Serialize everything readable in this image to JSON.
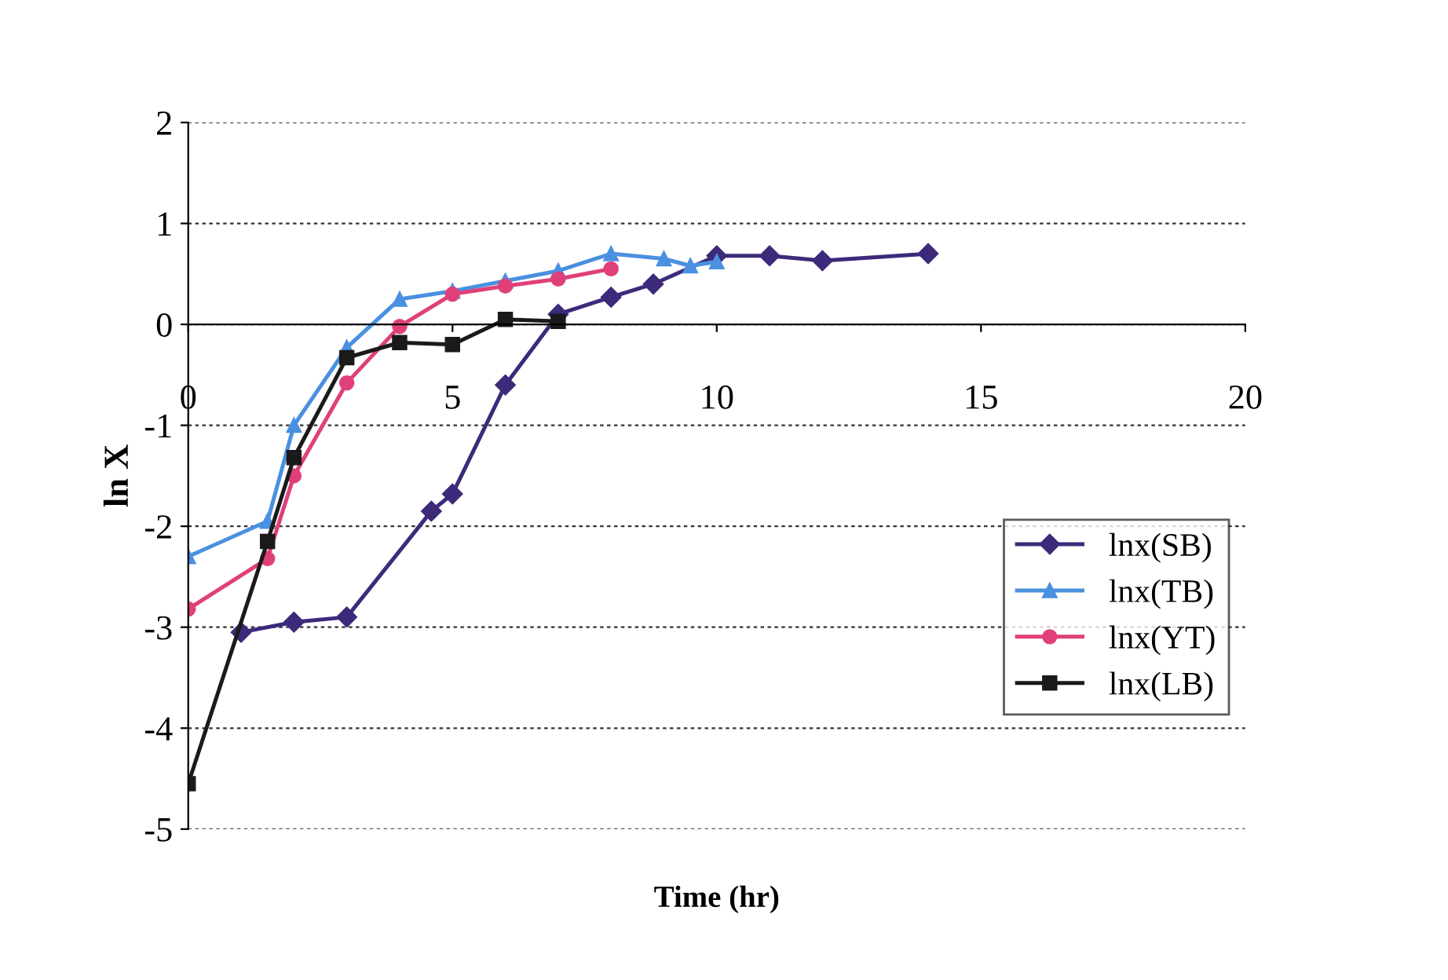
{
  "chart_data": {
    "type": "line",
    "xlabel": "Time (hr)",
    "ylabel": "ln X",
    "xlim": [
      0,
      20
    ],
    "xticks": [
      0,
      5,
      10,
      15,
      20
    ],
    "ylim": [
      -5,
      2
    ],
    "yticks": [
      -5,
      -4,
      -3,
      -2,
      -1,
      0,
      1,
      2
    ],
    "grid": "y",
    "legend": "right",
    "series": [
      {
        "name": "lnx(SB)",
        "color": "#3d2a7a",
        "marker": "diamond",
        "x": [
          1,
          2,
          3,
          4.6,
          5,
          6,
          7,
          8,
          8.8,
          10,
          11,
          12,
          14
        ],
        "values": [
          -3.05,
          -2.95,
          -2.9,
          -1.85,
          -1.68,
          -0.6,
          0.1,
          0.27,
          0.4,
          0.68,
          0.68,
          0.63,
          0.7
        ]
      },
      {
        "name": "lnx(TB)",
        "color": "#4a90e0",
        "marker": "triangle",
        "x": [
          0,
          1.5,
          2,
          3,
          4,
          5,
          6,
          7,
          8,
          9,
          9.5,
          10
        ],
        "values": [
          -2.3,
          -1.95,
          -1.0,
          -0.23,
          0.25,
          0.33,
          0.43,
          0.53,
          0.7,
          0.65,
          0.58,
          0.62
        ]
      },
      {
        "name": "lnx(YT)",
        "color": "#e0407a",
        "marker": "circle",
        "x": [
          0,
          1.5,
          2,
          3,
          4,
          5,
          6,
          7,
          8
        ],
        "values": [
          -2.82,
          -2.32,
          -1.5,
          -0.58,
          -0.02,
          0.3,
          0.38,
          0.45,
          0.55
        ]
      },
      {
        "name": "lnx(LB)",
        "color": "#1a1a1a",
        "marker": "square",
        "x": [
          0,
          1.5,
          2,
          3,
          4,
          5,
          6,
          7
        ],
        "values": [
          -4.55,
          -2.15,
          -1.32,
          -0.33,
          -0.18,
          -0.2,
          0.05,
          0.03
        ]
      }
    ]
  }
}
